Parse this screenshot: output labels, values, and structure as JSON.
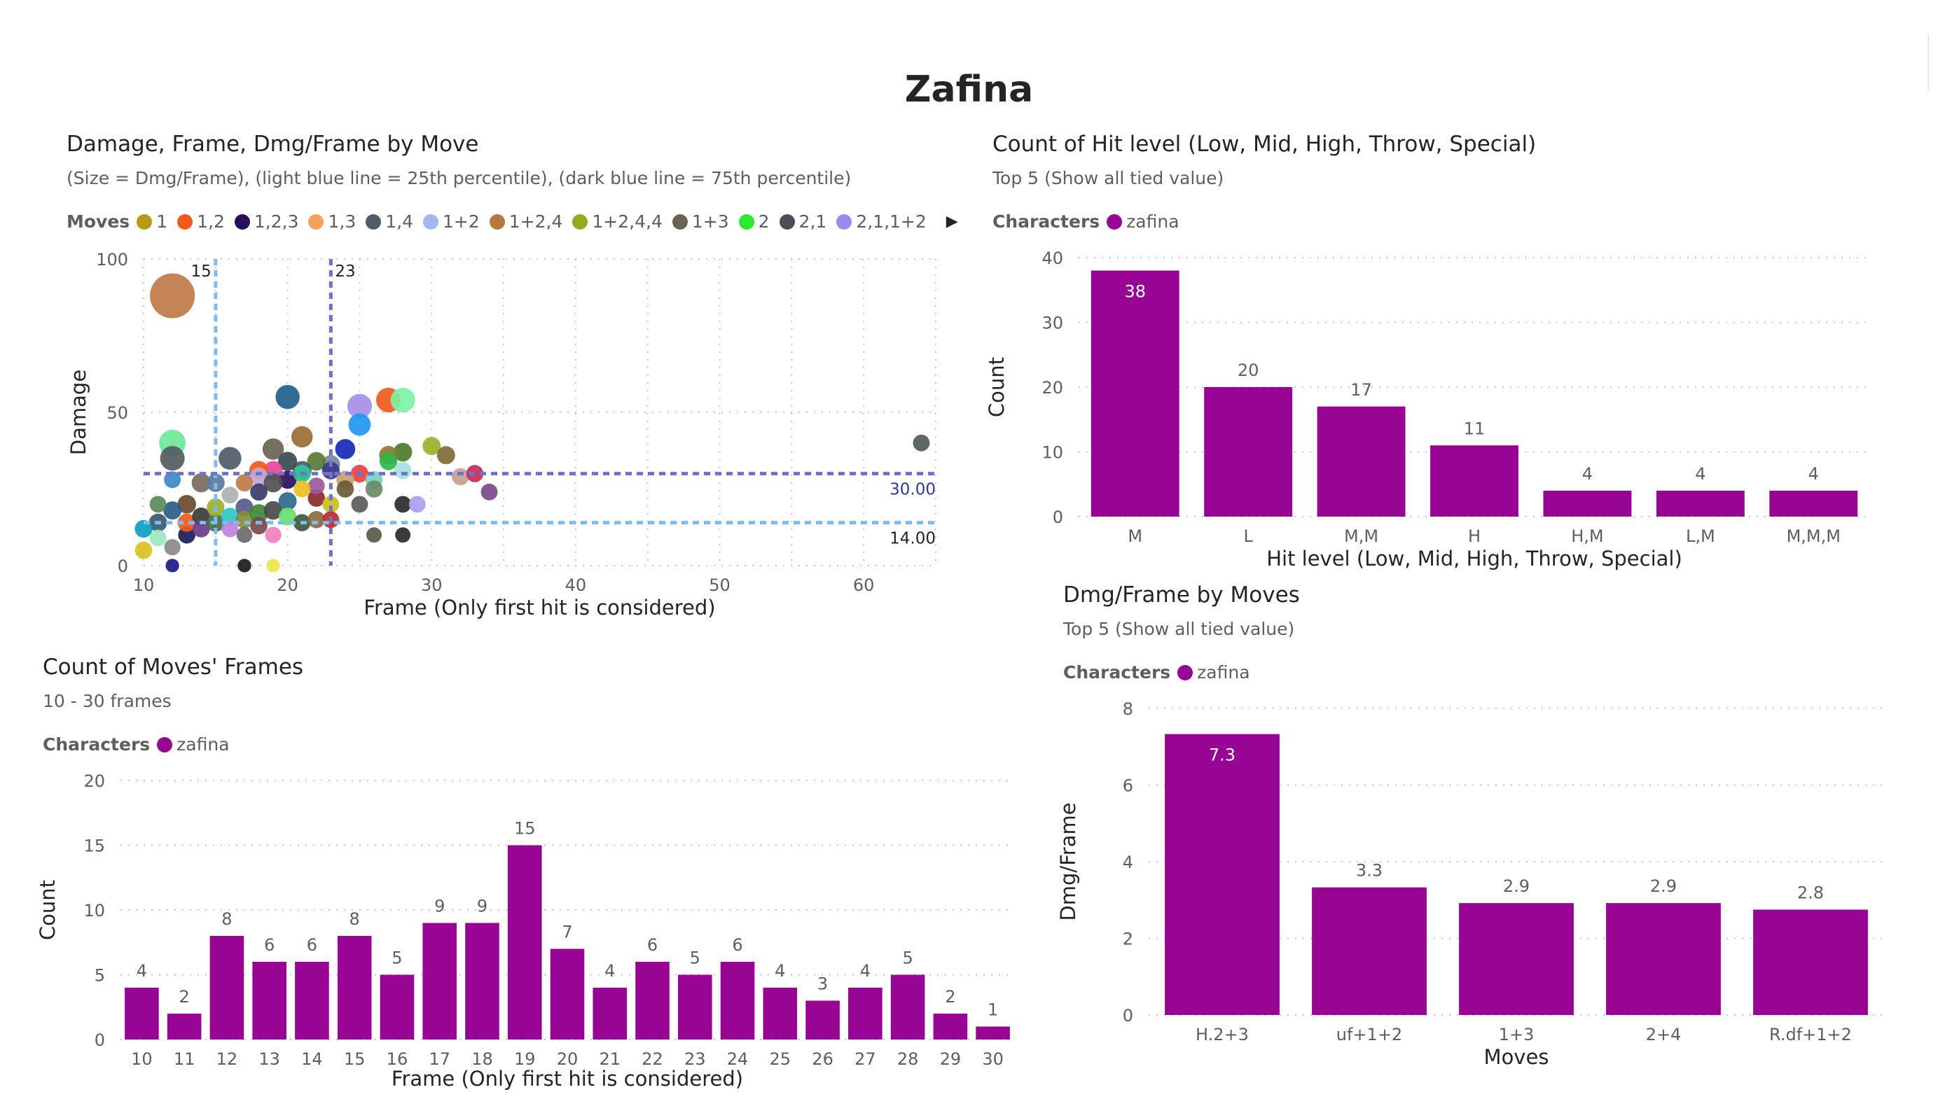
{
  "page": {
    "title": "Zafina"
  },
  "colors": {
    "bar": "#980594",
    "legend_dot": "#980594",
    "p25_line": "#79bdf7",
    "p75_line": "#6c73c8",
    "grid": "#c8c6c4"
  },
  "scatter": {
    "title": "Damage, Frame, Dmg/Frame by Move",
    "subtitle": "(Size = Dmg/Frame), (light blue line = 25th percentile), (dark blue line = 75th percentile)",
    "legend_title": "Moves",
    "legend": [
      {
        "name": "1",
        "color": "#b89a14"
      },
      {
        "name": "1,2",
        "color": "#f25a1c"
      },
      {
        "name": "1,2,3",
        "color": "#2a0e5c"
      },
      {
        "name": "1,3",
        "color": "#f5a35c"
      },
      {
        "name": "1,4",
        "color": "#4f5b66"
      },
      {
        "name": "1+2",
        "color": "#a6b8f2"
      },
      {
        "name": "1+2,4",
        "color": "#b9773e"
      },
      {
        "name": "1+2,4,4",
        "color": "#8fad1f"
      },
      {
        "name": "1+3",
        "color": "#6b6355"
      },
      {
        "name": "2",
        "color": "#2ee82e"
      },
      {
        "name": "2,1",
        "color": "#4a4f58"
      },
      {
        "name": "2,1,1+2",
        "color": "#9c8aeb"
      }
    ],
    "legend_arrow_icon": "triangle-right-icon"
  },
  "hit_level": {
    "title": "Count of Hit level (Low, Mid, High, Throw, Special)",
    "subtitle": "Top 5 (Show all tied value)",
    "legend_title": "Characters",
    "legend_item": "zafina"
  },
  "dmg_frame": {
    "title": "Dmg/Frame by Moves",
    "subtitle": "Top 5 (Show all tied value)",
    "legend_title": "Characters",
    "legend_item": "zafina"
  },
  "frames": {
    "title": "Count of Moves' Frames",
    "subtitle": "10 - 30 frames",
    "legend_title": "Characters",
    "legend_item": "zafina"
  },
  "chart_data": [
    {
      "id": "scatter",
      "type": "scatter",
      "xlabel": "Frame (Only first hit is considered)",
      "ylabel": "Damage",
      "xlim": [
        10,
        65
      ],
      "ylim": [
        0,
        100
      ],
      "xticks": [
        10,
        20,
        30,
        40,
        50,
        60
      ],
      "yticks": [
        0,
        50,
        100
      ],
      "reference_lines": [
        {
          "axis": "x",
          "value": 15,
          "label": "15",
          "kind": "p25"
        },
        {
          "axis": "x",
          "value": 23,
          "label": "23",
          "kind": "p75"
        },
        {
          "axis": "y",
          "value": 30,
          "label": "30.00",
          "kind": "p75"
        },
        {
          "axis": "y",
          "value": 14,
          "label": "14.00",
          "kind": "p25"
        }
      ],
      "points": [
        {
          "x": 12,
          "y": 88,
          "s": 7.3,
          "c": "#c07a46"
        },
        {
          "x": 20,
          "y": 55,
          "s": 2.8,
          "c": "#1f5f8b"
        },
        {
          "x": 27,
          "y": 54,
          "s": 2.9,
          "c": "#f25a1c"
        },
        {
          "x": 28,
          "y": 54,
          "s": 2.9,
          "c": "#7df2a6"
        },
        {
          "x": 25,
          "y": 52,
          "s": 2.9,
          "c": "#a58ee8"
        },
        {
          "x": 25,
          "y": 46,
          "s": 2.4,
          "c": "#2196f3"
        },
        {
          "x": 12,
          "y": 40,
          "s": 3.3,
          "c": "#6ee89a"
        },
        {
          "x": 12,
          "y": 35,
          "s": 2.9,
          "c": "#555b60"
        },
        {
          "x": 16,
          "y": 35,
          "s": 2.5,
          "c": "#4f5b66"
        },
        {
          "x": 21,
          "y": 42,
          "s": 2.2,
          "c": "#9b6a35"
        },
        {
          "x": 19,
          "y": 38,
          "s": 2.2,
          "c": "#6b6355"
        },
        {
          "x": 24,
          "y": 38,
          "s": 1.9,
          "c": "#7a6a3a"
        },
        {
          "x": 24,
          "y": 38,
          "s": 1.9,
          "c": "#2234c8"
        },
        {
          "x": 28,
          "y": 37,
          "s": 1.6,
          "c": "#4e7a2a"
        },
        {
          "x": 27,
          "y": 36,
          "s": 1.6,
          "c": "#8a7a3a"
        },
        {
          "x": 30,
          "y": 39,
          "s": 1.5,
          "c": "#9db02a"
        },
        {
          "x": 31,
          "y": 36,
          "s": 1.5,
          "c": "#7d6a3a"
        },
        {
          "x": 27,
          "y": 34,
          "s": 1.4,
          "c": "#2eb84a"
        },
        {
          "x": 23,
          "y": 33,
          "s": 1.6,
          "c": "#7a8a9a"
        },
        {
          "x": 22,
          "y": 34,
          "s": 1.6,
          "c": "#5b7a3a"
        },
        {
          "x": 21,
          "y": 31,
          "s": 1.7,
          "c": "#4a5a6a"
        },
        {
          "x": 20,
          "y": 34,
          "s": 1.7,
          "c": "#3a4a50"
        },
        {
          "x": 19,
          "y": 31,
          "s": 1.7,
          "c": "#e8459a"
        },
        {
          "x": 18,
          "y": 31,
          "s": 1.7,
          "c": "#f25a1c"
        },
        {
          "x": 18,
          "y": 29,
          "s": 1.5,
          "c": "#c0a8e0"
        },
        {
          "x": 20,
          "y": 28,
          "s": 1.5,
          "c": "#2a0e5c"
        },
        {
          "x": 19,
          "y": 27,
          "s": 1.7,
          "c": "#4f4f4f"
        },
        {
          "x": 21,
          "y": 30,
          "s": 1.4,
          "c": "#2ec89a"
        },
        {
          "x": 23,
          "y": 31,
          "s": 1.4,
          "c": "#3a3a8a"
        },
        {
          "x": 25,
          "y": 30,
          "s": 1.4,
          "c": "#e84040"
        },
        {
          "x": 24,
          "y": 28,
          "s": 1.4,
          "c": "#c8a070"
        },
        {
          "x": 26,
          "y": 28,
          "s": 1.3,
          "c": "#7ad0c0"
        },
        {
          "x": 24,
          "y": 25,
          "s": 1.3,
          "c": "#6a5a3a"
        },
        {
          "x": 22,
          "y": 22,
          "s": 1.3,
          "c": "#8a2a2a"
        },
        {
          "x": 23,
          "y": 20,
          "s": 1.2,
          "c": "#c8c020"
        },
        {
          "x": 25,
          "y": 20,
          "s": 1.2,
          "c": "#5a5a5a"
        },
        {
          "x": 14,
          "y": 27,
          "s": 1.7,
          "c": "#7a6a5a"
        },
        {
          "x": 15,
          "y": 27,
          "s": 1.5,
          "c": "#5a7aa0"
        },
        {
          "x": 13,
          "y": 20,
          "s": 1.6,
          "c": "#6b4a2a"
        },
        {
          "x": 12,
          "y": 18,
          "s": 1.5,
          "c": "#2a5a8a"
        },
        {
          "x": 11,
          "y": 14,
          "s": 1.5,
          "c": "#3a5a6a"
        },
        {
          "x": 10,
          "y": 12,
          "s": 1.4,
          "c": "#0aa0c0"
        },
        {
          "x": 10,
          "y": 5,
          "s": 1.3,
          "c": "#d8c020"
        },
        {
          "x": 11,
          "y": 9,
          "s": 1.2,
          "c": "#9ae8c0"
        },
        {
          "x": 12,
          "y": 6,
          "s": 1.1,
          "c": "#8a8a8a"
        },
        {
          "x": 13,
          "y": 10,
          "s": 1.3,
          "c": "#1a1a5a"
        },
        {
          "x": 13,
          "y": 14,
          "s": 1.5,
          "c": "#f25a1c"
        },
        {
          "x": 14,
          "y": 16,
          "s": 1.5,
          "c": "#3a3a3a"
        },
        {
          "x": 14,
          "y": 12,
          "s": 1.3,
          "c": "#6a3a8a"
        },
        {
          "x": 15,
          "y": 14,
          "s": 1.5,
          "c": "#4a6a4a"
        },
        {
          "x": 15,
          "y": 19,
          "s": 1.4,
          "c": "#9ab02a"
        },
        {
          "x": 16,
          "y": 16,
          "s": 1.4,
          "c": "#2ac8c8"
        },
        {
          "x": 16,
          "y": 12,
          "s": 1.2,
          "c": "#c080e0"
        },
        {
          "x": 17,
          "y": 19,
          "s": 1.4,
          "c": "#5a5a8a"
        },
        {
          "x": 17,
          "y": 15,
          "s": 1.4,
          "c": "#8a8a3a"
        },
        {
          "x": 18,
          "y": 17,
          "s": 1.6,
          "c": "#3a8a3a"
        },
        {
          "x": 18,
          "y": 13,
          "s": 1.3,
          "c": "#7a4a4a"
        },
        {
          "x": 19,
          "y": 18,
          "s": 1.6,
          "c": "#4a4a4a"
        },
        {
          "x": 19,
          "y": 10,
          "s": 1.1,
          "c": "#f080c0"
        },
        {
          "x": 20,
          "y": 21,
          "s": 1.5,
          "c": "#2a6a8a"
        },
        {
          "x": 20,
          "y": 16,
          "s": 1.4,
          "c": "#6ae06a"
        },
        {
          "x": 21,
          "y": 14,
          "s": 1.3,
          "c": "#3a5a3a"
        },
        {
          "x": 22,
          "y": 15,
          "s": 1.3,
          "c": "#8a6a3a"
        },
        {
          "x": 23,
          "y": 15,
          "s": 1.2,
          "c": "#c02a2a"
        },
        {
          "x": 26,
          "y": 25,
          "s": 1.3,
          "c": "#6a8a6a"
        },
        {
          "x": 28,
          "y": 31,
          "s": 1.3,
          "c": "#a8e0e0"
        },
        {
          "x": 32,
          "y": 29,
          "s": 1.3,
          "c": "#c8a090"
        },
        {
          "x": 33,
          "y": 30,
          "s": 1.3,
          "c": "#c82a5a"
        },
        {
          "x": 34,
          "y": 24,
          "s": 1.2,
          "c": "#7a4a8a"
        },
        {
          "x": 28,
          "y": 20,
          "s": 1.2,
          "c": "#2a2a2a"
        },
        {
          "x": 29,
          "y": 20,
          "s": 1.2,
          "c": "#a8a0f0"
        },
        {
          "x": 26,
          "y": 10,
          "s": 0.9,
          "c": "#5a5a4a"
        },
        {
          "x": 28,
          "y": 10,
          "s": 0.9,
          "c": "#2a2a2a"
        },
        {
          "x": 64,
          "y": 40,
          "s": 1.2,
          "c": "#4f5b56"
        },
        {
          "x": 17,
          "y": 10,
          "s": 1.0,
          "c": "#6a6a6a"
        },
        {
          "x": 12,
          "y": 28,
          "s": 1.2,
          "c": "#3a8ac8"
        },
        {
          "x": 11,
          "y": 20,
          "s": 1.2,
          "c": "#5a8a5a"
        },
        {
          "x": 16,
          "y": 23,
          "s": 1.2,
          "c": "#b0b0b0"
        },
        {
          "x": 22,
          "y": 26,
          "s": 1.2,
          "c": "#9a5a9a"
        },
        {
          "x": 18,
          "y": 24,
          "s": 1.3,
          "c": "#3a3a6a"
        },
        {
          "x": 17,
          "y": 27,
          "s": 1.3,
          "c": "#c07a46"
        },
        {
          "x": 21,
          "y": 25,
          "s": 1.2,
          "c": "#e8c020"
        },
        {
          "x": 12,
          "y": 0,
          "s": 0.5,
          "c": "#1a1a8a"
        },
        {
          "x": 17,
          "y": 0,
          "s": 0.5,
          "c": "#1a1a1a"
        },
        {
          "x": 19,
          "y": 0,
          "s": 0.5,
          "c": "#e8e84a"
        }
      ]
    },
    {
      "id": "hit_level",
      "type": "bar",
      "xlabel": "Hit level (Low, Mid, High, Throw, Special)",
      "ylabel": "Count",
      "ylim": [
        0,
        40
      ],
      "yticks": [
        0,
        10,
        20,
        30,
        40
      ],
      "categories": [
        "M",
        "L",
        "M,M",
        "H",
        "H,M",
        "L,M",
        "M,M,M"
      ],
      "values": [
        38,
        20,
        17,
        11,
        4,
        4,
        4
      ],
      "labels": [
        "38",
        "20",
        "17",
        "11",
        "4",
        "4",
        "4"
      ]
    },
    {
      "id": "dmg_frame",
      "type": "bar",
      "xlabel": "Moves",
      "ylabel": "Dmg/Frame",
      "ylim": [
        0,
        8
      ],
      "yticks": [
        0,
        2,
        4,
        6,
        8
      ],
      "categories": [
        "H.2+3",
        "uf+1+2",
        "1+3",
        "2+4",
        "R.df+1+2"
      ],
      "values": [
        7.33,
        3.33,
        2.92,
        2.92,
        2.75
      ],
      "labels": [
        "7.3",
        "3.3",
        "2.9",
        "2.9",
        "2.8"
      ]
    },
    {
      "id": "frames",
      "type": "bar",
      "xlabel": "Frame (Only first hit is considered)",
      "ylabel": "Count",
      "ylim": [
        0,
        20
      ],
      "yticks": [
        0,
        5,
        10,
        15,
        20
      ],
      "categories": [
        "10",
        "11",
        "12",
        "13",
        "14",
        "15",
        "16",
        "17",
        "18",
        "19",
        "20",
        "21",
        "22",
        "23",
        "24",
        "25",
        "26",
        "27",
        "28",
        "29",
        "30"
      ],
      "values": [
        4,
        2,
        8,
        6,
        6,
        8,
        5,
        9,
        9,
        15,
        7,
        4,
        6,
        5,
        6,
        4,
        3,
        4,
        5,
        2,
        1
      ],
      "labels": [
        "4",
        "2",
        "8",
        "6",
        "6",
        "8",
        "5",
        "9",
        "9",
        "15",
        "7",
        "4",
        "6",
        "5",
        "6",
        "4",
        "3",
        "4",
        "5",
        "2",
        "1"
      ]
    }
  ]
}
